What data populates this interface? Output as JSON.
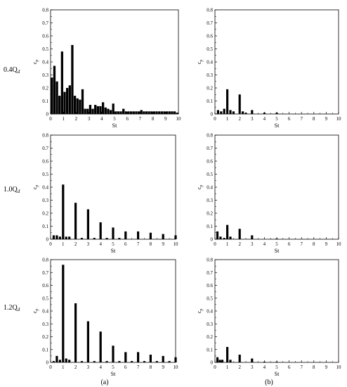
{
  "row_labels": [
    "0.4Q",
    "1.0Q",
    "1.2Q"
  ],
  "row_label_sub": "d",
  "column_labels": [
    "(a)",
    "(b)"
  ],
  "chart_data": [
    {
      "type": "bar",
      "xlabel": "St",
      "ylabel": "cp",
      "xlim": [
        0,
        10
      ],
      "ylim": [
        0,
        0.8
      ],
      "xticks": [
        0,
        1,
        2,
        3,
        4,
        5,
        6,
        7,
        8,
        9,
        10
      ],
      "yticks": [
        0,
        0.1,
        0.2,
        0.3,
        0.4,
        0.5,
        0.6,
        0.7,
        0.8
      ],
      "bar_width": 0.18,
      "x": [
        0.1,
        0.3,
        0.5,
        0.7,
        0.9,
        1.1,
        1.3,
        1.5,
        1.7,
        1.9,
        2.1,
        2.3,
        2.5,
        2.7,
        2.9,
        3.1,
        3.3,
        3.5,
        3.7,
        3.9,
        4.1,
        4.3,
        4.5,
        4.7,
        4.9,
        5.1,
        5.3,
        5.5,
        5.7,
        5.9,
        6.1,
        6.3,
        6.5,
        6.7,
        6.9,
        7.1,
        7.3,
        7.5,
        7.7,
        7.9,
        8.1,
        8.3,
        8.5,
        8.7,
        8.9,
        9.1,
        9.3,
        9.5,
        9.7,
        9.9
      ],
      "values": [
        0.28,
        0.37,
        0.25,
        0.14,
        0.48,
        0.17,
        0.2,
        0.22,
        0.53,
        0.14,
        0.12,
        0.11,
        0.19,
        0.04,
        0.04,
        0.07,
        0.04,
        0.07,
        0.06,
        0.06,
        0.09,
        0.05,
        0.04,
        0.03,
        0.08,
        0.02,
        0.02,
        0.02,
        0.04,
        0.02,
        0.02,
        0.02,
        0.02,
        0.02,
        0.02,
        0.03,
        0.02,
        0.02,
        0.02,
        0.02,
        0.02,
        0.02,
        0.02,
        0.02,
        0.02,
        0.02,
        0.02,
        0.02,
        0.02,
        0.01
      ]
    },
    {
      "type": "bar",
      "xlabel": "St",
      "ylabel": "cp",
      "xlim": [
        0,
        10
      ],
      "ylim": [
        0,
        0.8
      ],
      "xticks": [
        0,
        1,
        2,
        3,
        4,
        5,
        6,
        7,
        8,
        9,
        10
      ],
      "yticks": [
        0,
        0.1,
        0.2,
        0.3,
        0.4,
        0.5,
        0.6,
        0.7,
        0.8
      ],
      "bar_width": 0.18,
      "x": [
        0.25,
        0.5,
        0.75,
        1.0,
        1.25,
        1.5,
        2.0,
        2.25,
        2.5,
        3.0,
        4.0,
        5.0
      ],
      "values": [
        0.03,
        0.02,
        0.04,
        0.19,
        0.03,
        0.02,
        0.15,
        0.02,
        0.01,
        0.03,
        0.01,
        0.01
      ]
    },
    {
      "type": "bar",
      "xlabel": "St",
      "ylabel": "cp",
      "xlim": [
        0,
        10
      ],
      "ylim": [
        0,
        0.8
      ],
      "xticks": [
        0,
        1,
        2,
        3,
        4,
        5,
        6,
        7,
        8,
        9,
        10
      ],
      "yticks": [
        0,
        0.1,
        0.2,
        0.3,
        0.4,
        0.5,
        0.6,
        0.7,
        0.8
      ],
      "bar_width": 0.18,
      "x": [
        0.25,
        0.5,
        0.75,
        1.0,
        1.25,
        1.5,
        2.0,
        2.5,
        3.0,
        3.5,
        4.0,
        4.5,
        5.0,
        5.5,
        6.0,
        7.0,
        8.0,
        9.0,
        10.0
      ],
      "values": [
        0.03,
        0.03,
        0.02,
        0.42,
        0.02,
        0.02,
        0.28,
        0.01,
        0.23,
        0.01,
        0.13,
        0.01,
        0.09,
        0.01,
        0.06,
        0.06,
        0.05,
        0.04,
        0.03
      ]
    },
    {
      "type": "bar",
      "xlabel": "St",
      "ylabel": "cp",
      "xlim": [
        0,
        10
      ],
      "ylim": [
        0,
        0.8
      ],
      "xticks": [
        0,
        1,
        2,
        3,
        4,
        5,
        6,
        7,
        8,
        9,
        10
      ],
      "yticks": [
        0,
        0.1,
        0.2,
        0.3,
        0.4,
        0.5,
        0.6,
        0.7,
        0.8
      ],
      "bar_width": 0.18,
      "x": [
        0.2,
        0.45,
        0.75,
        1.0,
        1.25,
        2.0,
        3.0,
        5.0
      ],
      "values": [
        0.06,
        0.02,
        0.01,
        0.11,
        0.02,
        0.08,
        0.03,
        0.005
      ]
    },
    {
      "type": "bar",
      "xlabel": "St",
      "ylabel": "cp",
      "xlim": [
        0,
        10
      ],
      "ylim": [
        0,
        0.8
      ],
      "xticks": [
        0,
        1,
        2,
        3,
        4,
        5,
        6,
        7,
        8,
        9,
        10
      ],
      "yticks": [
        0,
        0.1,
        0.2,
        0.3,
        0.4,
        0.5,
        0.6,
        0.7,
        0.8
      ],
      "bar_width": 0.18,
      "x": [
        0.25,
        0.5,
        0.75,
        1.0,
        1.25,
        1.5,
        2.0,
        2.5,
        3.0,
        3.5,
        4.0,
        4.5,
        5.0,
        5.5,
        6.0,
        6.5,
        7.0,
        7.5,
        8.0,
        8.5,
        9.0,
        9.5,
        10.0
      ],
      "values": [
        0.01,
        0.05,
        0.02,
        0.76,
        0.03,
        0.02,
        0.46,
        0.01,
        0.32,
        0.01,
        0.24,
        0.01,
        0.13,
        0.01,
        0.08,
        0.01,
        0.08,
        0.01,
        0.06,
        0.01,
        0.05,
        0.01,
        0.04
      ]
    },
    {
      "type": "bar",
      "xlabel": "St",
      "ylabel": "cp",
      "xlim": [
        0,
        10
      ],
      "ylim": [
        0,
        0.8
      ],
      "xticks": [
        0,
        1,
        2,
        3,
        4,
        5,
        6,
        7,
        8,
        9,
        10
      ],
      "yticks": [
        0,
        0.1,
        0.2,
        0.3,
        0.4,
        0.5,
        0.6,
        0.7,
        0.8
      ],
      "bar_width": 0.18,
      "x": [
        0.2,
        0.4,
        0.6,
        1.0,
        1.25,
        2.0,
        3.0,
        4.0,
        5.0
      ],
      "values": [
        0.04,
        0.02,
        0.02,
        0.12,
        0.02,
        0.06,
        0.03,
        0.005,
        0.005
      ]
    }
  ]
}
